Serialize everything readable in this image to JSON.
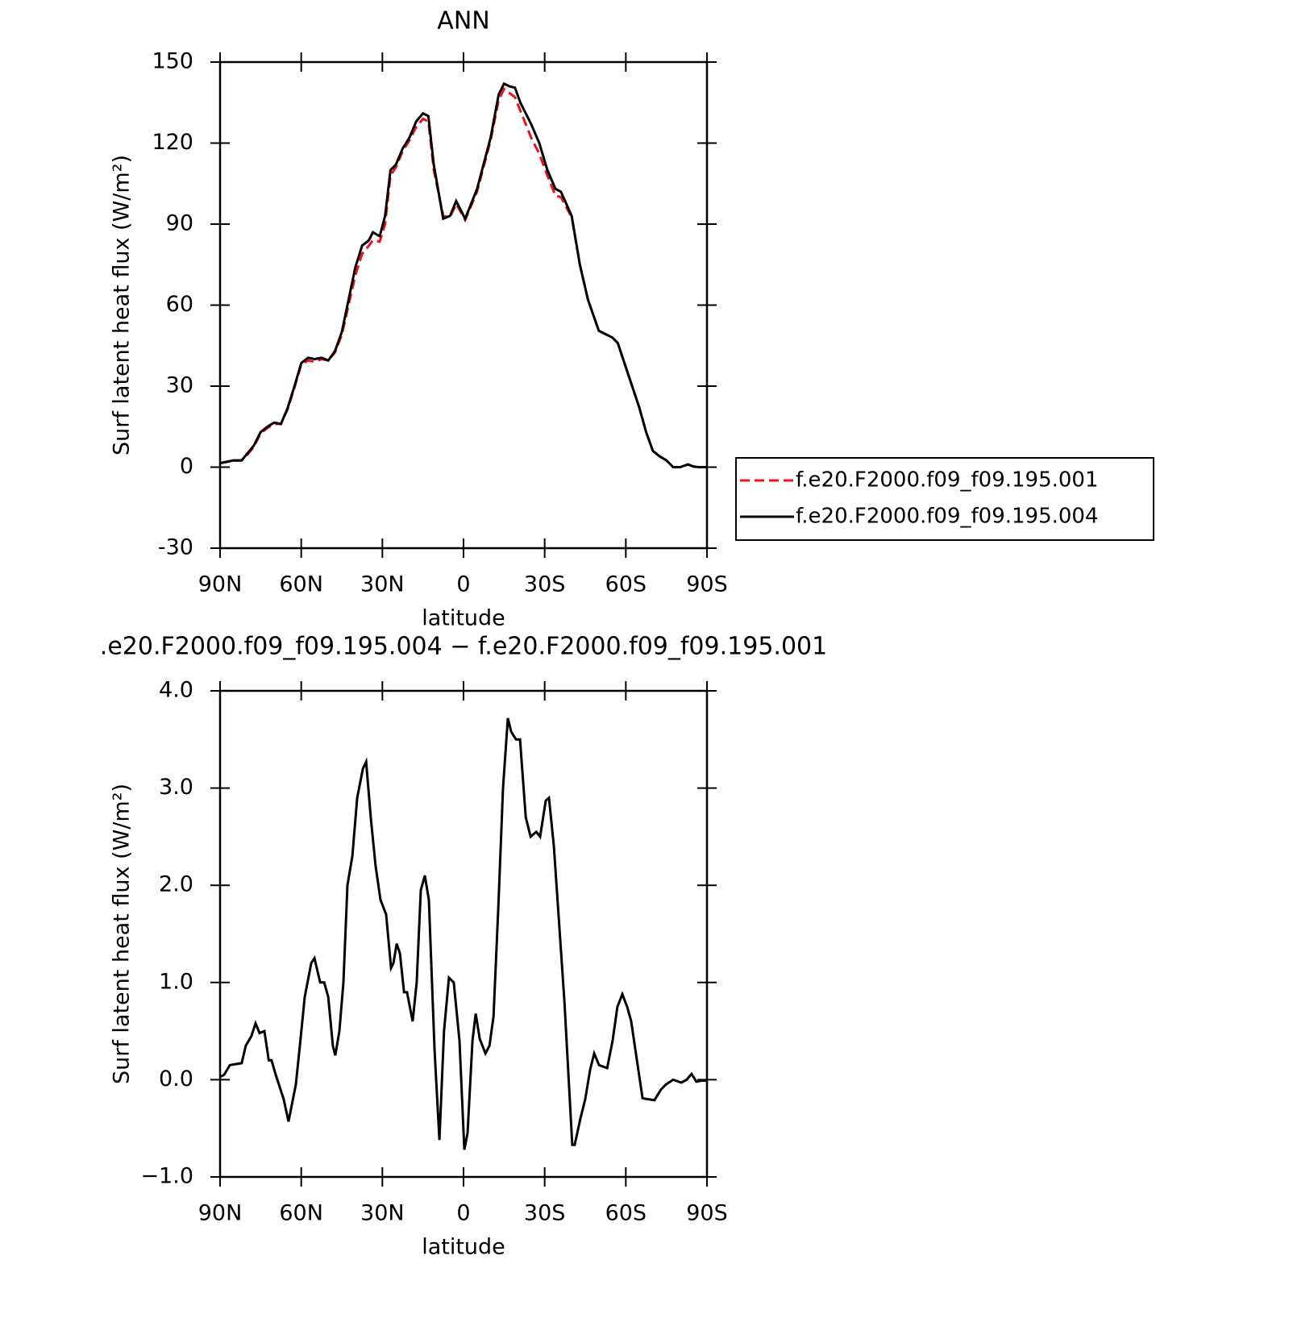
{
  "chart_data": [
    {
      "type": "line",
      "title": "ANN",
      "xlabel": "latitude",
      "ylabel": "Surf latent heat flux (W/m²)",
      "xlim": [
        90,
        -90
      ],
      "xticks": [
        {
          "value": 90,
          "label": "90N"
        },
        {
          "value": 60,
          "label": "60N"
        },
        {
          "value": 30,
          "label": "30N"
        },
        0,
        {
          "value": -30,
          "label": "30S"
        },
        {
          "value": -60,
          "label": "60S"
        },
        {
          "value": -90,
          "label": "90S"
        }
      ],
      "ylim": [
        -30,
        150
      ],
      "yticks": [
        -30,
        0,
        30,
        60,
        90,
        120,
        150
      ],
      "legend": "right",
      "x": [
        90,
        85,
        82,
        80,
        77.5,
        75,
        72.5,
        70,
        67.5,
        65,
        62.5,
        60,
        57.5,
        55,
        52.5,
        50,
        47.5,
        45,
        42.5,
        40,
        37.5,
        35,
        33.5,
        31,
        29,
        27,
        25,
        22.5,
        20,
        17.5,
        15,
        13,
        11,
        7.5,
        5,
        2.7,
        -0.6,
        -5,
        -10,
        -13,
        -15,
        -17,
        -19,
        -21,
        -25,
        -28,
        -31,
        -34,
        -36,
        -40,
        -43,
        -46,
        -50,
        -55,
        -57,
        -60,
        -65,
        -67.5,
        -70,
        -72.5,
        -75,
        -77.5,
        -80,
        -83,
        -85,
        -87,
        -90
      ],
      "series": [
        {
          "name": "f.e20.F2000.f09_f09.195.001",
          "color": "#e8141c",
          "linestyle": "dashed",
          "values": [
            1.5,
            2.4,
            2.5,
            4.5,
            7.5,
            12.5,
            14.5,
            16,
            16,
            21.5,
            29.5,
            38,
            39.5,
            39,
            40,
            39.5,
            42.5,
            49,
            60,
            71,
            79,
            82,
            84,
            83.5,
            90,
            108,
            111,
            117,
            121,
            126,
            129,
            128,
            110,
            93,
            92.5,
            97.5,
            91.5,
            102,
            121,
            136,
            140,
            138.5,
            137,
            132,
            122,
            116,
            108,
            100.5,
            100,
            92.5,
            75,
            62,
            50.5,
            48,
            46,
            37,
            22,
            13,
            6,
            4,
            2.5,
            0,
            0,
            1,
            0.2,
            0,
            0
          ]
        },
        {
          "name": "f.e20.F2000.f09_f09.195.004",
          "color": "#000000",
          "linestyle": "solid",
          "values": [
            1.5,
            2.5,
            2.5,
            5,
            8,
            13,
            15,
            16.5,
            16,
            22,
            30,
            38.5,
            40.5,
            40,
            40.5,
            39.5,
            43,
            50,
            62,
            74,
            82,
            84,
            87,
            85.5,
            93,
            110,
            112,
            118,
            122,
            128,
            131,
            130,
            112,
            92,
            93,
            98.5,
            92,
            103,
            122,
            138,
            142,
            141,
            140.5,
            135,
            127,
            120,
            110,
            103,
            102,
            93,
            75,
            62,
            50.5,
            48,
            46,
            37,
            22,
            13,
            6,
            4,
            2.5,
            0,
            0,
            1,
            0.2,
            0,
            0
          ]
        }
      ]
    },
    {
      "type": "line",
      "title": ".e20.F2000.f09_f09.195.004 − f.e20.F2000.f09_f09.195.001",
      "xlabel": "latitude",
      "ylabel": "Surf latent heat flux (W/m²)",
      "xlim": [
        90,
        -90
      ],
      "xticks": [
        {
          "value": 90,
          "label": "90N"
        },
        {
          "value": 60,
          "label": "60N"
        },
        {
          "value": 30,
          "label": "30N"
        },
        0,
        {
          "value": -30,
          "label": "30S"
        },
        {
          "value": -60,
          "label": "60S"
        },
        {
          "value": -90,
          "label": "90S"
        }
      ],
      "ylim": [
        -1,
        4
      ],
      "yticks": [
        {
          "value": -1,
          "label": "−1.0"
        },
        {
          "value": 0,
          "label": "0.0"
        },
        {
          "value": 1,
          "label": "1.0"
        },
        {
          "value": 2,
          "label": "2.0"
        },
        {
          "value": 3,
          "label": "3.0"
        },
        {
          "value": 4,
          "label": "4.0"
        }
      ],
      "x": [
        90,
        88.5,
        86.4,
        84.3,
        82,
        80.5,
        78.4,
        76.9,
        75.4,
        73.6,
        72,
        71,
        69.4,
        66.5,
        64.7,
        62,
        60.5,
        58.7,
        56.3,
        55.1,
        53,
        51.5,
        50,
        48.3,
        47.4,
        45.9,
        44.4,
        42.9,
        41.1,
        39.3,
        37.2,
        36,
        34.3,
        32.5,
        30.7,
        28.6,
        26.8,
        25.9,
        24.7,
        23.5,
        22,
        20.9,
        18.8,
        17.3,
        15.8,
        14.3,
        12.8,
        10.7,
        8.9,
        7.2,
        5.4,
        3.6,
        1.5,
        -0.3,
        -1.5,
        -3.3,
        -4.5,
        -6,
        -8.1,
        -9.6,
        -11.1,
        -12.9,
        -14.6,
        -16.4,
        -17.6,
        -19.4,
        -20.9,
        -23,
        -24.8,
        -26.9,
        -28.3,
        -30.4,
        -31.6,
        -33.4,
        -37.3,
        -40.2,
        -41.1,
        -43.2,
        -45,
        -46.8,
        -48.3,
        -50.1,
        -53.1,
        -55.1,
        -56.9,
        -58.7,
        -60.5,
        -62,
        -64.1,
        -66.2,
        -68,
        -70.6,
        -73,
        -74.8,
        -77.5,
        -80.5,
        -82.5,
        -84.3,
        -86.1,
        -87.9,
        -90
      ],
      "series": [
        {
          "name": null,
          "color": "#000000",
          "linestyle": "solid",
          "values": [
            0.03,
            0.05,
            0.15,
            0.16,
            0.17,
            0.35,
            0.45,
            0.58,
            0.48,
            0.5,
            0.2,
            0.2,
            0.05,
            -0.2,
            -0.43,
            -0.05,
            0.35,
            0.85,
            1.2,
            1.25,
            1.0,
            1.0,
            0.85,
            0.35,
            0.25,
            0.5,
            1.0,
            2.0,
            2.3,
            2.9,
            3.2,
            3.27,
            2.7,
            2.2,
            1.85,
            1.7,
            1.15,
            1.2,
            1.4,
            1.3,
            0.9,
            0.9,
            0.6,
            1.0,
            1.95,
            2.1,
            1.85,
            0.3,
            -0.62,
            0.5,
            1.05,
            1.0,
            0.4,
            -0.72,
            -0.55,
            0.4,
            0.68,
            0.42,
            0.27,
            0.35,
            0.65,
            1.8,
            3.0,
            3.72,
            3.58,
            3.5,
            3.5,
            2.7,
            2.5,
            2.55,
            2.5,
            2.87,
            2.9,
            2.4,
            0.8,
            -0.67,
            -0.67,
            -0.4,
            -0.2,
            0.1,
            0.27,
            0.15,
            0.12,
            0.4,
            0.75,
            0.88,
            0.75,
            0.6,
            0.2,
            -0.19,
            -0.2,
            -0.21,
            -0.1,
            -0.05,
            0,
            -0.03,
            0,
            0.06,
            -0.02,
            -0.01,
            -0.01
          ]
        }
      ]
    }
  ]
}
